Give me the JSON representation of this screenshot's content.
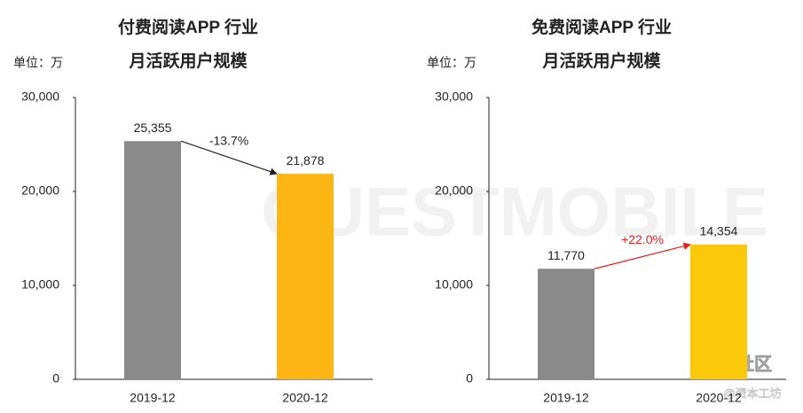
{
  "chart_data": [
    {
      "type": "bar",
      "title": "付费阅读APP 行业",
      "subtitle": "月活跃用户规模",
      "unit_label": "单位：万",
      "categories": [
        "2019-12",
        "2020-12"
      ],
      "values": [
        25355,
        21878
      ],
      "value_labels": [
        "25,355",
        "21,878"
      ],
      "colors": [
        "#8a8a8a",
        "#fbb515"
      ],
      "ylim": [
        0,
        30000
      ],
      "yticks": [
        0,
        {
          "value": 10000,
          "label": "10,000"
        },
        {
          "value": 20000,
          "label": "20,000"
        },
        {
          "value": 30000,
          "label": "30,000"
        }
      ],
      "annotation": {
        "text": "-13.7%",
        "color": "#222222"
      }
    },
    {
      "type": "bar",
      "title": "免费阅读APP 行业",
      "subtitle": "月活跃用户规模",
      "unit_label": "单位：万",
      "categories": [
        "2019-12",
        "2020-12"
      ],
      "values": [
        11770,
        14354
      ],
      "value_labels": [
        "11,770",
        "14,354"
      ],
      "colors": [
        "#8a8a8a",
        "#fcc80a"
      ],
      "ylim": [
        0,
        30000
      ],
      "yticks": [
        0,
        {
          "value": 10000,
          "label": "10,000"
        },
        {
          "value": 20000,
          "label": "20,000"
        },
        {
          "value": 30000,
          "label": "30,000"
        }
      ],
      "annotation": {
        "text": "+22.0%",
        "color": "#e8201c"
      }
    }
  ],
  "watermark": {
    "brand": "QUESTMOBILE",
    "community": "老虎社区",
    "source": "@资本工坊"
  }
}
